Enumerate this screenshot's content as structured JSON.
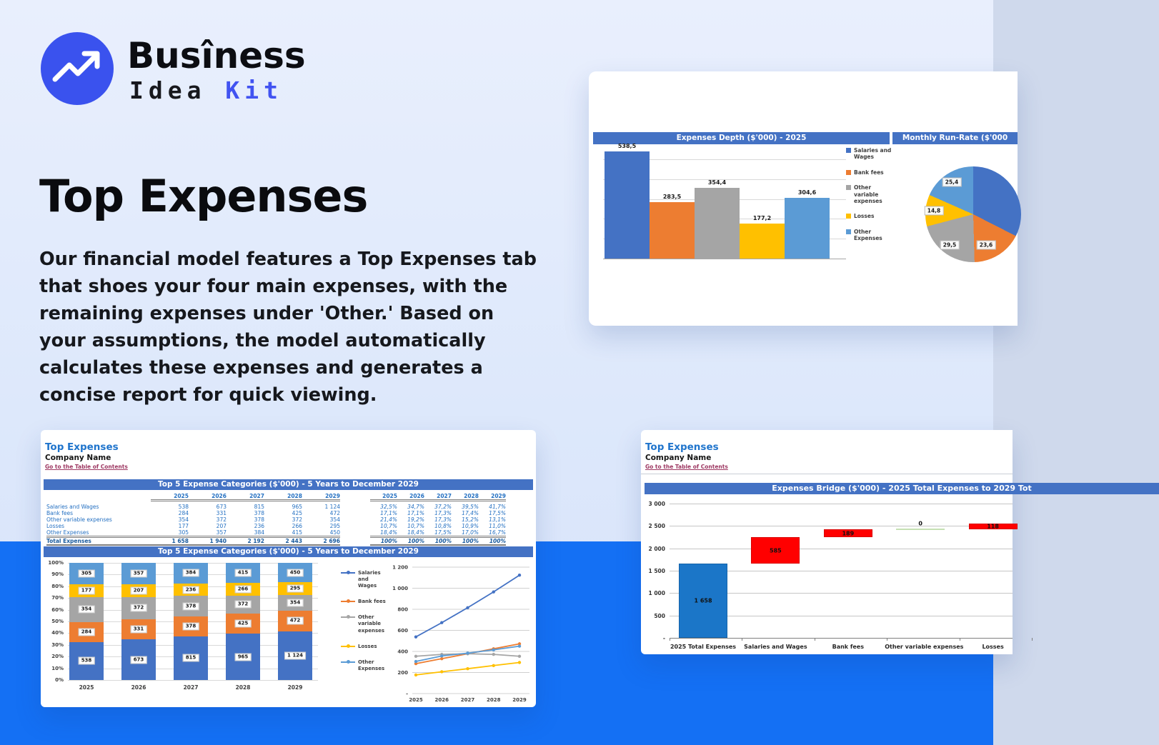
{
  "logo": {
    "line1": "Busîness",
    "line2_word1": "Idea",
    "line2_word2": "Kit",
    "circle_color": "#3a52ee",
    "accent_color": "#4153f1"
  },
  "hero": {
    "title": "Top Expenses",
    "paragraph": "Our financial model features a Top Expenses tab that shoes your four main expenses, with the remaining expenses under 'Other.' Based on your assumptions, the model automatically calculates these expenses and generates a concise report for quick viewing."
  },
  "colors": {
    "series": [
      "#4472C4",
      "#ED7D31",
      "#A5A5A5",
      "#FFC000",
      "#5B9BD5"
    ],
    "header_bar": "#4472C4",
    "waterfall_base": "#1B76C8",
    "waterfall_increase": "#FF0000",
    "waterfall_zero_line": "#C6E0B4",
    "page_band": "#1470f4"
  },
  "top_right_card": {
    "bar_header": "Expenses Depth ($'000) - 2025",
    "pie_header": "Monthly Run-Rate ($'000",
    "legend": [
      "Salaries and Wages",
      "Bank fees",
      "Other variable expenses",
      "Losses",
      "Other Expenses"
    ]
  },
  "sheet1": {
    "title": "Top Expenses",
    "company": "Company Name",
    "toc_link": "Go to the Table of Contents",
    "table_header": "Top 5 Expense Categories ($'000) - 5 Years to December 2029",
    "chart_header": "Top 5 Expense Categories ($'000) - 5 Years to December 2029",
    "years": [
      "2025",
      "2026",
      "2027",
      "2028",
      "2029"
    ],
    "rows": [
      {
        "label": "Salaries and Wages",
        "values": [
          "538",
          "673",
          "815",
          "965",
          "1 124"
        ],
        "pcts": [
          "32,5%",
          "34,7%",
          "37,2%",
          "39,5%",
          "41,7%"
        ]
      },
      {
        "label": "Bank fees",
        "values": [
          "284",
          "331",
          "378",
          "425",
          "472"
        ],
        "pcts": [
          "17,1%",
          "17,1%",
          "17,3%",
          "17,4%",
          "17,5%"
        ]
      },
      {
        "label": "Other variable expenses",
        "values": [
          "354",
          "372",
          "378",
          "372",
          "354"
        ],
        "pcts": [
          "21,4%",
          "19,2%",
          "17,3%",
          "15,2%",
          "13,1%"
        ]
      },
      {
        "label": "Losses",
        "values": [
          "177",
          "207",
          "236",
          "266",
          "295"
        ],
        "pcts": [
          "10,7%",
          "10,7%",
          "10,8%",
          "10,9%",
          "11,0%"
        ]
      },
      {
        "label": "Other Expenses",
        "values": [
          "305",
          "357",
          "384",
          "415",
          "450"
        ],
        "pcts": [
          "18,4%",
          "18,4%",
          "17,5%",
          "17,0%",
          "16,7%"
        ]
      }
    ],
    "total": {
      "label": "Total Expenses",
      "values": [
        "1 658",
        "1 940",
        "2 192",
        "2 443",
        "2 696"
      ],
      "pcts": [
        "100%",
        "100%",
        "100%",
        "100%",
        "100%"
      ]
    }
  },
  "sheet2": {
    "title": "Top Expenses",
    "company": "Company Name",
    "toc_link": "Go to the Table of Contents",
    "chart_header": "Expenses Bridge ($'000) - 2025 Total Expenses to 2029 Tot"
  },
  "chart_data": [
    {
      "id": "expenses-depth",
      "type": "bar",
      "title": "Expenses Depth ($'000) - 2025",
      "categories": [
        "Salaries and Wages",
        "Bank fees",
        "Other variable expenses",
        "Losses",
        "Other Expenses"
      ],
      "values": [
        538.5,
        283.5,
        354.4,
        177.2,
        304.6
      ],
      "value_labels": [
        "538,5",
        "283,5",
        "354,4",
        "177,2",
        "304,6"
      ],
      "ylim": [
        0,
        600
      ],
      "grid_step": 100,
      "legend_position": "right"
    },
    {
      "id": "monthly-run-rate",
      "type": "pie",
      "title": "Monthly Run-Rate ($'000",
      "slices": [
        {
          "name": "Salaries and Wages",
          "value": 44.9,
          "visible_label": ""
        },
        {
          "name": "Bank fees",
          "value": 23.6,
          "visible_label": "23,6"
        },
        {
          "name": "Other variable expenses",
          "value": 29.5,
          "visible_label": "29,5"
        },
        {
          "name": "Losses",
          "value": 14.8,
          "visible_label": "14,8"
        },
        {
          "name": "Other Expenses",
          "value": 25.4,
          "visible_label": "25,4"
        }
      ]
    },
    {
      "id": "top5-stacked",
      "type": "stacked-bar-100",
      "title": "Top 5 Expense Categories ($'000) - 5 Years to December 2029",
      "categories": [
        "2025",
        "2026",
        "2027",
        "2028",
        "2029"
      ],
      "y_ticks": [
        "100%",
        "90%",
        "80%",
        "70%",
        "60%",
        "50%",
        "40%",
        "30%",
        "20%",
        "10%",
        "0%"
      ],
      "series": [
        {
          "name": "Salaries and Wages",
          "values": [
            538,
            673,
            815,
            965,
            1124
          ],
          "labels": [
            "538",
            "673",
            "815",
            "965",
            "1 124"
          ]
        },
        {
          "name": "Bank fees",
          "values": [
            284,
            331,
            378,
            425,
            472
          ],
          "labels": [
            "284",
            "331",
            "378",
            "425",
            "472"
          ]
        },
        {
          "name": "Other variable expenses",
          "values": [
            354,
            372,
            378,
            372,
            354
          ],
          "labels": [
            "354",
            "372",
            "378",
            "372",
            "354"
          ]
        },
        {
          "name": "Losses",
          "values": [
            177,
            207,
            236,
            266,
            295
          ],
          "labels": [
            "177",
            "207",
            "236",
            "266",
            "295"
          ]
        },
        {
          "name": "Other Expenses",
          "values": [
            305,
            357,
            384,
            415,
            450
          ],
          "labels": [
            "305",
            "357",
            "384",
            "415",
            "450"
          ]
        }
      ]
    },
    {
      "id": "top5-line",
      "type": "line",
      "categories": [
        "2025",
        "2026",
        "2027",
        "2028",
        "2029"
      ],
      "ylim": [
        0,
        1200
      ],
      "y_ticks": [
        "1 200",
        "1 000",
        "800",
        "600",
        "400",
        "200",
        "-"
      ],
      "series": [
        {
          "name": "Salaries and Wages",
          "values": [
            538,
            673,
            815,
            965,
            1124
          ]
        },
        {
          "name": "Bank fees",
          "values": [
            284,
            331,
            378,
            425,
            472
          ]
        },
        {
          "name": "Other variable expenses",
          "values": [
            354,
            372,
            378,
            372,
            354
          ]
        },
        {
          "name": "Losses",
          "values": [
            177,
            207,
            236,
            266,
            295
          ]
        },
        {
          "name": "Other Expenses",
          "values": [
            305,
            357,
            384,
            415,
            450
          ]
        }
      ]
    },
    {
      "id": "expenses-bridge",
      "type": "waterfall",
      "title": "Expenses Bridge ($'000) - 2025 Total Expenses to 2029 Tot",
      "categories": [
        "2025 Total Expenses",
        "Salaries and Wages",
        "Bank fees",
        "Other variable expenses",
        "Losses"
      ],
      "ylim": [
        0,
        3000
      ],
      "y_ticks": [
        "3 000",
        "2 500",
        "2 000",
        "1 500",
        "1 000",
        "500",
        "-"
      ],
      "bars": [
        {
          "label": "1 658",
          "start": 0,
          "end": 1658,
          "kind": "base"
        },
        {
          "label": "585",
          "start": 1658,
          "end": 2243,
          "kind": "increase"
        },
        {
          "label": "189",
          "start": 2243,
          "end": 2432,
          "kind": "increase"
        },
        {
          "label": "0",
          "start": 2432,
          "end": 2432,
          "kind": "zero"
        },
        {
          "label": "118",
          "start": 2432,
          "end": 2550,
          "kind": "increase"
        }
      ]
    }
  ]
}
